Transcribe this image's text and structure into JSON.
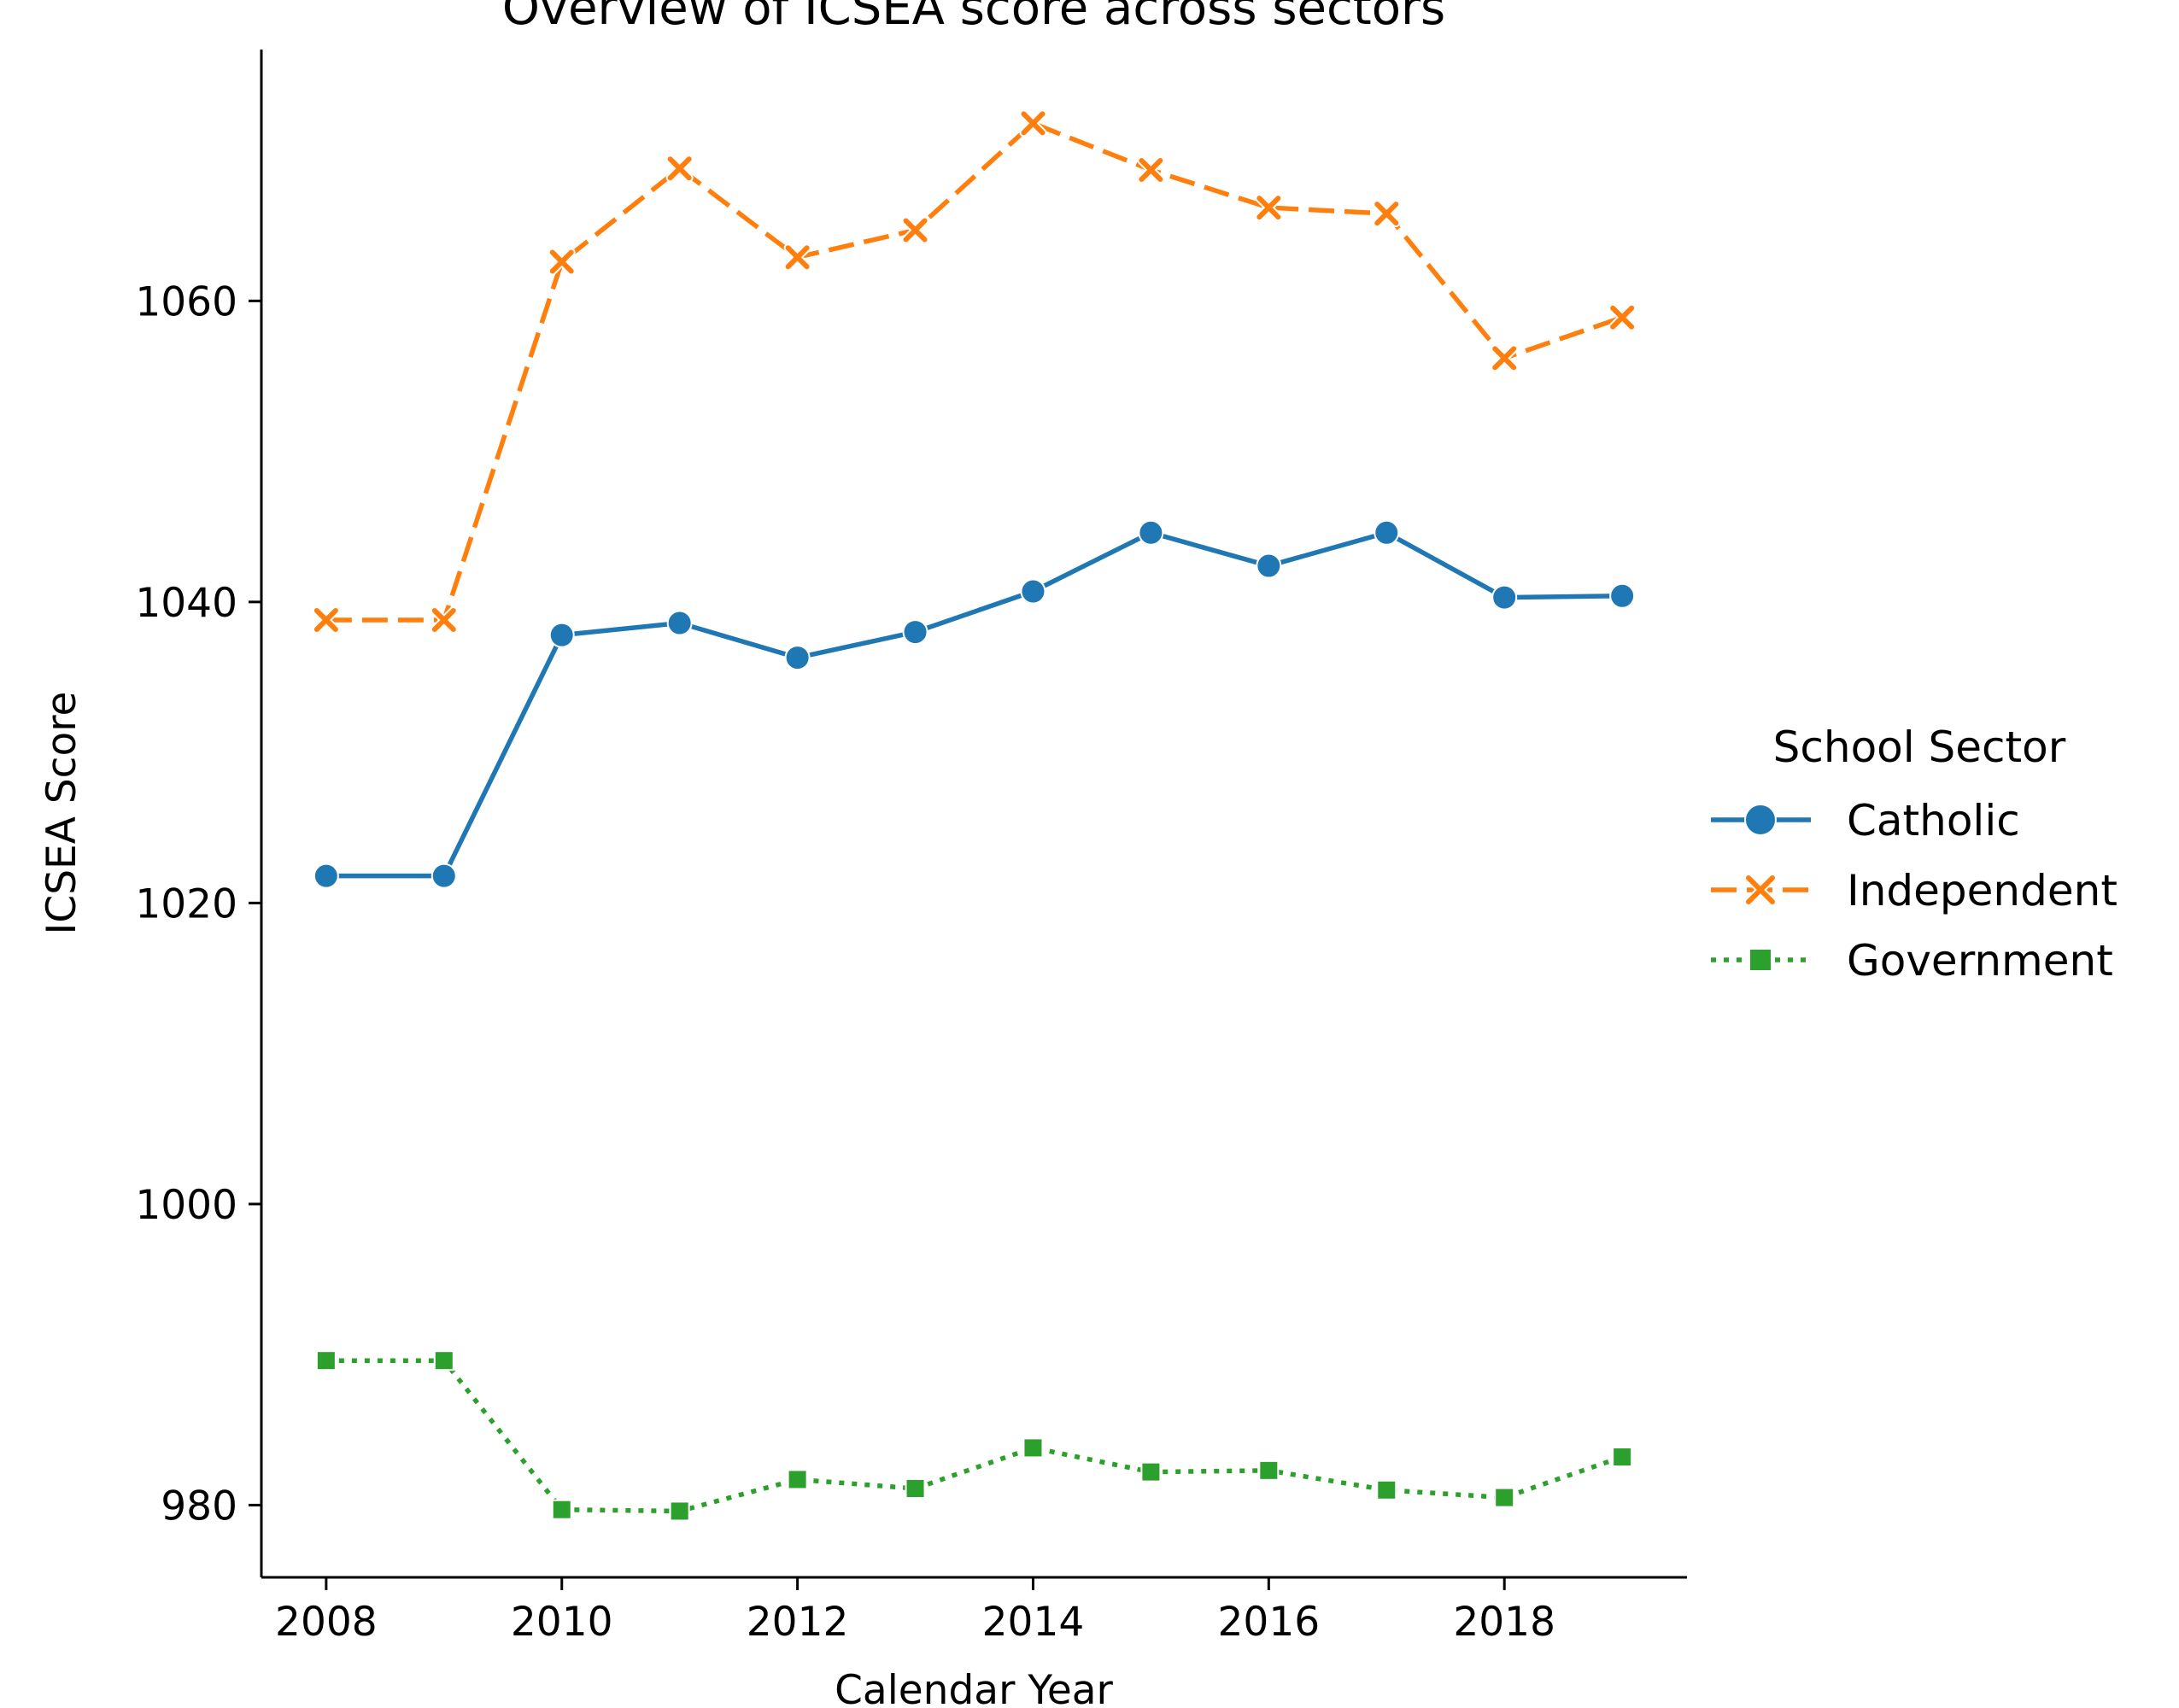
{
  "chart_data": {
    "type": "line",
    "title": "Overview of ICSEA score across sectors",
    "xlabel": "Calendar Year",
    "ylabel": "ICSEA Score",
    "x": [
      2008,
      2009,
      2010,
      2011,
      2012,
      2013,
      2014,
      2015,
      2016,
      2017,
      2018,
      2019
    ],
    "xticks": [
      2008,
      2010,
      2012,
      2014,
      2016,
      2018
    ],
    "yticks": [
      980,
      1000,
      1020,
      1040,
      1060
    ],
    "xlim": [
      2007.45,
      2019.55
    ],
    "ylim": [
      975.2,
      1076.7
    ],
    "grid": false,
    "legend": {
      "title": "School Sector",
      "placement": "center-right outside"
    },
    "series": [
      {
        "name": "Catholic",
        "color": "#1f77b4",
        "marker": "circle",
        "line_style": "solid",
        "values": [
          1021.8,
          1021.8,
          1037.8,
          1038.6,
          1036.3,
          1038.0,
          1040.7,
          1044.6,
          1042.4,
          1044.6,
          1040.3,
          1040.4
        ]
      },
      {
        "name": "Independent",
        "color": "#ff7f0e",
        "marker": "x",
        "line_style": "dashed",
        "values": [
          1038.8,
          1038.8,
          1062.6,
          1068.8,
          1062.9,
          1064.7,
          1071.8,
          1068.7,
          1066.2,
          1065.8,
          1056.2,
          1058.9
        ]
      },
      {
        "name": "Government",
        "color": "#2ca02c",
        "marker": "square",
        "line_style": "dotted",
        "values": [
          989.6,
          989.6,
          979.7,
          979.6,
          981.7,
          981.1,
          983.8,
          982.2,
          982.3,
          981.0,
          980.5,
          983.2
        ]
      }
    ]
  }
}
